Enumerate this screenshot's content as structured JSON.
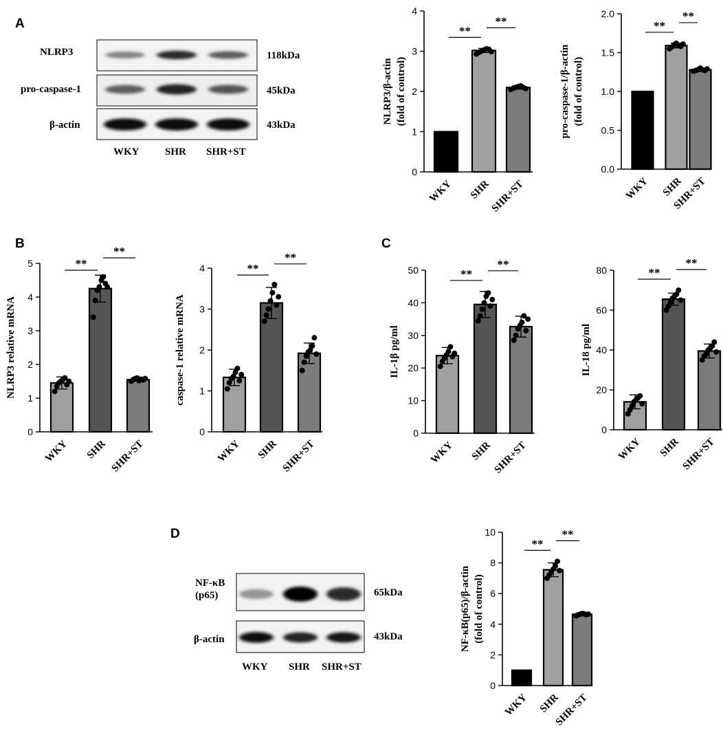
{
  "panels": {
    "A": {
      "letter": "A",
      "blot": {
        "rows": [
          {
            "label": "NLRP3",
            "kda": "118kDa",
            "band_intensity": [
              0.35,
              0.8,
              0.55
            ]
          },
          {
            "label": "pro-caspase-1",
            "kda": "45kDa",
            "band_intensity": [
              0.55,
              0.85,
              0.6
            ]
          },
          {
            "label": "β-actin",
            "kda": "43kDa",
            "band_intensity": [
              0.95,
              0.95,
              0.95
            ]
          }
        ],
        "lanes": [
          "WKY",
          "SHR",
          "SHR+ST"
        ]
      }
    },
    "B": {
      "letter": "B"
    },
    "C": {
      "letter": "C"
    },
    "D": {
      "letter": "D",
      "blot": {
        "rows": [
          {
            "label": "NF-κB",
            "label2": "(p65)",
            "kda": "65kDa",
            "band_intensity": [
              0.25,
              1.0,
              0.8
            ]
          },
          {
            "label": "β-actin",
            "kda": "43kDa",
            "band_intensity": [
              0.95,
              0.85,
              0.9
            ]
          }
        ],
        "lanes": [
          "WKY",
          "SHR",
          "SHR+ST"
        ]
      }
    }
  },
  "colors": {
    "wky_bar": "#000000",
    "light_bar": "#a0a0a0",
    "dark_bar": "#555555",
    "mid_bar": "#7c7c7c",
    "axis": "#000000"
  },
  "chart_data": [
    {
      "id": "nlrp3-protein",
      "type": "bar",
      "categories": [
        "WKY",
        "SHR",
        "SHR+ST"
      ],
      "ylabel": "NLRP3/β-actin",
      "ylabel2": "(fold of control)",
      "ylim": [
        0,
        4
      ],
      "yticks": [
        "0",
        "1",
        "2",
        "3",
        "4"
      ],
      "series": [
        {
          "values": [
            1.0,
            3.02,
            2.1
          ],
          "errors": [
            0,
            0.05,
            0.04
          ]
        }
      ],
      "points": [
        [],
        [
          2.93,
          2.97,
          3.0,
          3.03,
          3.06,
          3.05,
          2.99
        ],
        [
          2.05,
          2.08,
          2.1,
          2.12,
          2.14,
          2.1,
          2.07
        ]
      ],
      "colors": [
        "#000000",
        "#a0a0a0",
        "#7c7c7c"
      ],
      "significance": [
        {
          "from": 0,
          "to": 1,
          "label": "**"
        },
        {
          "from": 1,
          "to": 2,
          "label": "**"
        }
      ]
    },
    {
      "id": "procaspase1-protein",
      "type": "bar",
      "categories": [
        "WKY",
        "SHR",
        "SHR+ST"
      ],
      "ylabel": "pro-caspase-1/β-actin",
      "ylabel2": "(fold of control)",
      "ylim": [
        0,
        2
      ],
      "yticks": [
        "0.0",
        "0.5",
        "1.0",
        "1.5",
        "2.0"
      ],
      "series": [
        {
          "values": [
            1.0,
            1.59,
            1.28
          ],
          "errors": [
            0,
            0.03,
            0.02
          ]
        }
      ],
      "points": [
        [],
        [
          1.55,
          1.57,
          1.6,
          1.62,
          1.59,
          1.58,
          1.61
        ],
        [
          1.26,
          1.27,
          1.28,
          1.3,
          1.28,
          1.27,
          1.29
        ]
      ],
      "colors": [
        "#000000",
        "#a0a0a0",
        "#7c7c7c"
      ],
      "significance": [
        {
          "from": 0,
          "to": 1,
          "label": "**"
        },
        {
          "from": 1,
          "to": 2,
          "label": "**"
        }
      ]
    },
    {
      "id": "nlrp3-mrna",
      "type": "bar",
      "categories": [
        "WKY",
        "SHR",
        "SHR+ST"
      ],
      "ylabel": "NLRP3 relative mRNA",
      "ylim": [
        0,
        5
      ],
      "yticks": [
        "0",
        "1",
        "2",
        "3",
        "4",
        "5"
      ],
      "series": [
        {
          "values": [
            1.45,
            4.25,
            1.55
          ],
          "errors": [
            0.18,
            0.4,
            0.05
          ]
        }
      ],
      "points": [
        [
          1.2,
          1.35,
          1.45,
          1.5,
          1.55,
          1.6,
          1.4,
          1.5
        ],
        [
          3.4,
          3.9,
          4.2,
          4.3,
          4.5,
          4.6,
          4.4,
          4.3
        ],
        [
          1.5,
          1.55,
          1.58,
          1.6,
          1.52,
          1.56,
          1.54,
          1.58
        ]
      ],
      "colors": [
        "#a0a0a0",
        "#555555",
        "#7c7c7c"
      ],
      "significance": [
        {
          "from": 0,
          "to": 1,
          "label": "**"
        },
        {
          "from": 1,
          "to": 2,
          "label": "**"
        }
      ]
    },
    {
      "id": "caspase1-mrna",
      "type": "bar",
      "categories": [
        "WKY",
        "SHR",
        "SHR+ST"
      ],
      "ylabel": "caspase-1 relative mRNA",
      "ylim": [
        0,
        4
      ],
      "yticks": [
        "0",
        "1",
        "2",
        "3",
        "4"
      ],
      "series": [
        {
          "values": [
            1.33,
            3.15,
            1.92
          ],
          "errors": [
            0.2,
            0.38,
            0.25
          ]
        }
      ],
      "points": [
        [
          1.05,
          1.2,
          1.3,
          1.35,
          1.45,
          1.55,
          1.25,
          1.4
        ],
        [
          2.7,
          2.85,
          3.0,
          3.2,
          3.4,
          3.6,
          3.1,
          3.3
        ],
        [
          1.5,
          1.7,
          1.85,
          1.95,
          2.0,
          2.1,
          2.3,
          1.9
        ]
      ],
      "colors": [
        "#a0a0a0",
        "#555555",
        "#7c7c7c"
      ],
      "significance": [
        {
          "from": 0,
          "to": 1,
          "label": "**"
        },
        {
          "from": 1,
          "to": 2,
          "label": "**"
        }
      ]
    },
    {
      "id": "il1b",
      "type": "bar",
      "categories": [
        "WKY",
        "SHR",
        "SHR+ST"
      ],
      "ylabel": "IL-1β pg/ml",
      "ylim": [
        0,
        50
      ],
      "yticks": [
        "0",
        "10",
        "20",
        "30",
        "40",
        "50"
      ],
      "series": [
        {
          "values": [
            23.8,
            39.5,
            32.7
          ],
          "errors": [
            2.5,
            4.0,
            3.2
          ]
        }
      ],
      "points": [
        [
          20.5,
          22,
          23,
          24,
          25,
          26.5,
          23.5,
          24.5
        ],
        [
          34.5,
          36,
          38,
          40,
          42,
          43,
          39,
          41
        ],
        [
          28.5,
          30,
          32,
          33,
          34,
          36,
          31.5,
          35
        ]
      ],
      "colors": [
        "#a0a0a0",
        "#555555",
        "#7c7c7c"
      ],
      "significance": [
        {
          "from": 0,
          "to": 1,
          "label": "**"
        },
        {
          "from": 1,
          "to": 2,
          "label": "**"
        }
      ]
    },
    {
      "id": "il18",
      "type": "bar",
      "categories": [
        "WKY",
        "SHR",
        "SHR+ST"
      ],
      "ylabel": "IL-18 pg/ml",
      "ylim": [
        0,
        80
      ],
      "yticks": [
        "0",
        "20",
        "40",
        "60",
        "80"
      ],
      "series": [
        {
          "values": [
            14.0,
            65.5,
            39.5
          ],
          "errors": [
            3.5,
            3.0,
            3.5
          ]
        }
      ],
      "points": [
        [
          8,
          10,
          12,
          14,
          15,
          16,
          17,
          13
        ],
        [
          60,
          62,
          64,
          66,
          67,
          68,
          70,
          65
        ],
        [
          35,
          37,
          38,
          40,
          41,
          42,
          44,
          39
        ]
      ],
      "colors": [
        "#a0a0a0",
        "#555555",
        "#7c7c7c"
      ],
      "significance": [
        {
          "from": 0,
          "to": 1,
          "label": "**"
        },
        {
          "from": 1,
          "to": 2,
          "label": "**"
        }
      ]
    },
    {
      "id": "nfkb-protein",
      "type": "bar",
      "categories": [
        "WKY",
        "SHR",
        "SHR+ST"
      ],
      "ylabel": "NF-κB(p65)/β-actin",
      "ylabel2": "(fold of control)",
      "ylim": [
        0,
        10
      ],
      "yticks": [
        "0",
        "2",
        "4",
        "6",
        "8",
        "10"
      ],
      "series": [
        {
          "values": [
            1.0,
            7.55,
            4.65
          ],
          "errors": [
            0,
            0.45,
            0.1
          ]
        }
      ],
      "points": [
        [],
        [
          7.0,
          7.2,
          7.4,
          7.6,
          7.8,
          8.1,
          7.5
        ],
        [
          4.55,
          4.6,
          4.65,
          4.7,
          4.68,
          4.62,
          4.66
        ]
      ],
      "colors": [
        "#000000",
        "#a0a0a0",
        "#7c7c7c"
      ],
      "significance": [
        {
          "from": 0,
          "to": 1,
          "label": "**"
        },
        {
          "from": 1,
          "to": 2,
          "label": "**"
        }
      ]
    }
  ]
}
